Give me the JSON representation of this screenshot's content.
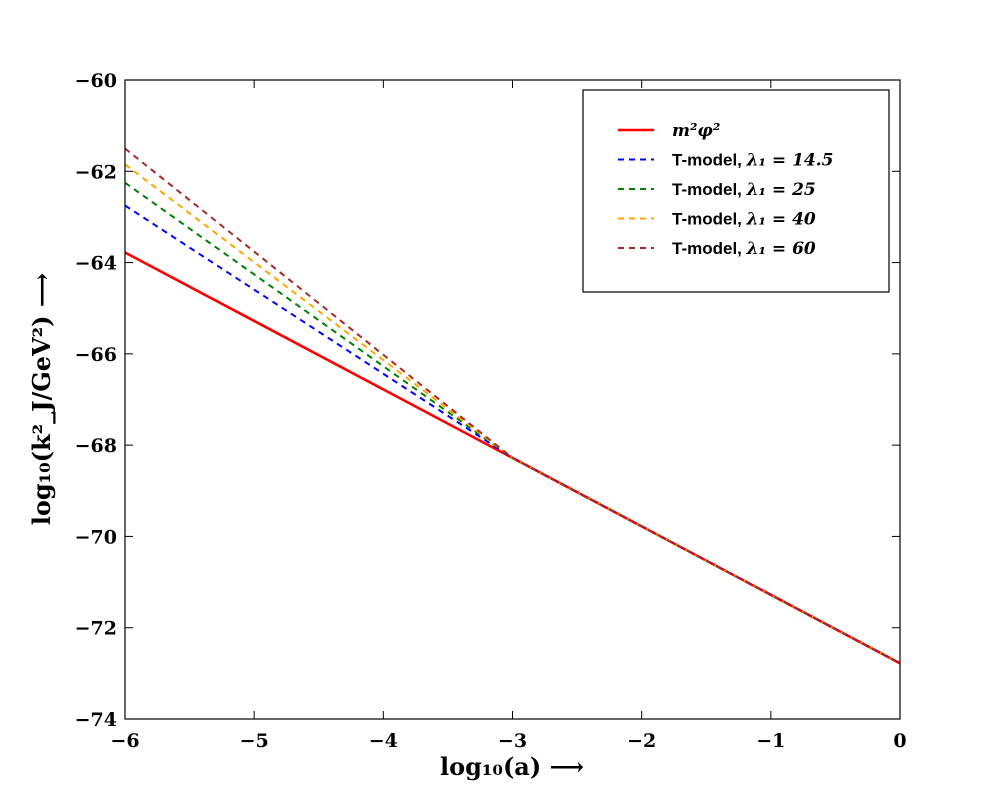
{
  "chart_data": {
    "type": "line",
    "xlabel": "log₁₀(a) ⟶",
    "ylabel": "log₁₀(k²_J/GeV²) ⟶",
    "xlim": [
      -6,
      0
    ],
    "ylim": [
      -74,
      -60
    ],
    "xticks": [
      -6,
      -5,
      -4,
      -3,
      -2,
      -1,
      0
    ],
    "yticks": [
      -74,
      -72,
      -70,
      -68,
      -66,
      -64,
      -62,
      -60
    ],
    "xtick_labels": [
      "−6",
      "−5",
      "−4",
      "−3",
      "−2",
      "−1",
      "0"
    ],
    "ytick_labels": [
      "−74",
      "−72",
      "−70",
      "−68",
      "−66",
      "−64",
      "−62",
      "−60"
    ],
    "legend_position": "top-right",
    "series": [
      {
        "name": "m²φ²",
        "label_prefix": "",
        "label_math": "m²φ²",
        "color": "#ff0000",
        "dash": "solid",
        "x": [
          -6,
          0
        ],
        "y": [
          -63.78,
          -72.78
        ]
      },
      {
        "name": "T-model, λ1 = 14.5",
        "label_prefix": "T-model, ",
        "label_math": "λ₁ = 14.5",
        "color": "#0000ff",
        "dash": "dashed",
        "x": [
          -6,
          -3,
          0
        ],
        "y": [
          -62.75,
          -68.28,
          -72.78
        ]
      },
      {
        "name": "T-model, λ1 = 25",
        "label_prefix": "T-model, ",
        "label_math": "λ₁ = 25",
        "color": "#008000",
        "dash": "dashed",
        "x": [
          -6,
          -3,
          0
        ],
        "y": [
          -62.25,
          -68.28,
          -72.78
        ]
      },
      {
        "name": "T-model, λ1 = 40",
        "label_prefix": "T-model, ",
        "label_math": "λ₁ = 40",
        "color": "#ffa500",
        "dash": "dashed",
        "x": [
          -6,
          -3,
          0
        ],
        "y": [
          -61.85,
          -68.28,
          -72.78
        ]
      },
      {
        "name": "T-model, λ1 = 60",
        "label_prefix": "T-model, ",
        "label_math": "λ₁ = 60",
        "color": "#a52a2a",
        "dash": "dashed",
        "x": [
          -6,
          -3,
          0
        ],
        "y": [
          -61.5,
          -68.28,
          -72.78
        ]
      }
    ]
  }
}
